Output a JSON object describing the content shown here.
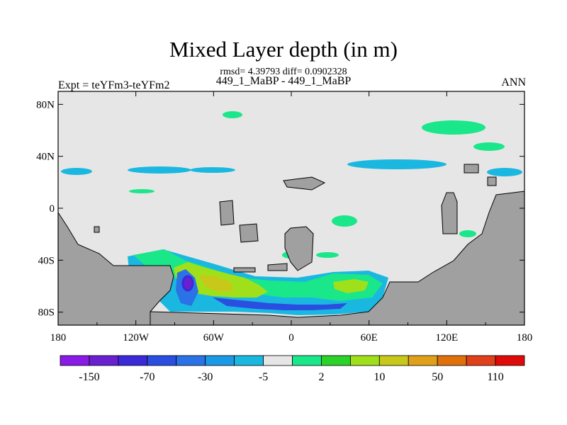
{
  "title": "Mixed Layer depth (in m)",
  "stats_line": "rmsd= 4.39793 diff= 0.0902328",
  "subtitle": "449_1_MaBP - 449_1_MaBP",
  "left_label": "Expt = teYFm3-teYFm2",
  "right_label": "ANN",
  "colors": {
    "background": "#e6e6e6",
    "land": "#a0a0a0",
    "palette": [
      "#8a1ae6",
      "#6a20d0",
      "#3a2ad8",
      "#2a4ee0",
      "#2a72e6",
      "#1a9ae6",
      "#1ab8e0",
      "#e6e6e6",
      "#1ae68a",
      "#2ad22a",
      "#a0e01a",
      "#c8c81a",
      "#e0a01a",
      "#e0700a",
      "#e0401a",
      "#e00a0a"
    ]
  },
  "axes": {
    "lat_ticks": [
      "80N",
      "40N",
      "0",
      "40S",
      "80S"
    ],
    "lon_ticks": [
      "180",
      "120W",
      "60W",
      "0",
      "60E",
      "120E",
      "180"
    ]
  },
  "colorbar": {
    "labels": [
      "-150",
      "-70",
      "-30",
      "-5",
      "2",
      "10",
      "50",
      "110"
    ]
  },
  "chart_data": {
    "type": "heatmap",
    "title": "Mixed Layer depth (in m)",
    "xlim": [
      -180,
      180
    ],
    "ylim": [
      -90,
      90
    ],
    "x_tick_values": [
      -180,
      -120,
      -60,
      0,
      60,
      120,
      180
    ],
    "y_tick_values": [
      80,
      40,
      0,
      -40,
      -80
    ],
    "levels": [
      -150,
      -70,
      -30,
      -5,
      2,
      10,
      50,
      110
    ]
  }
}
